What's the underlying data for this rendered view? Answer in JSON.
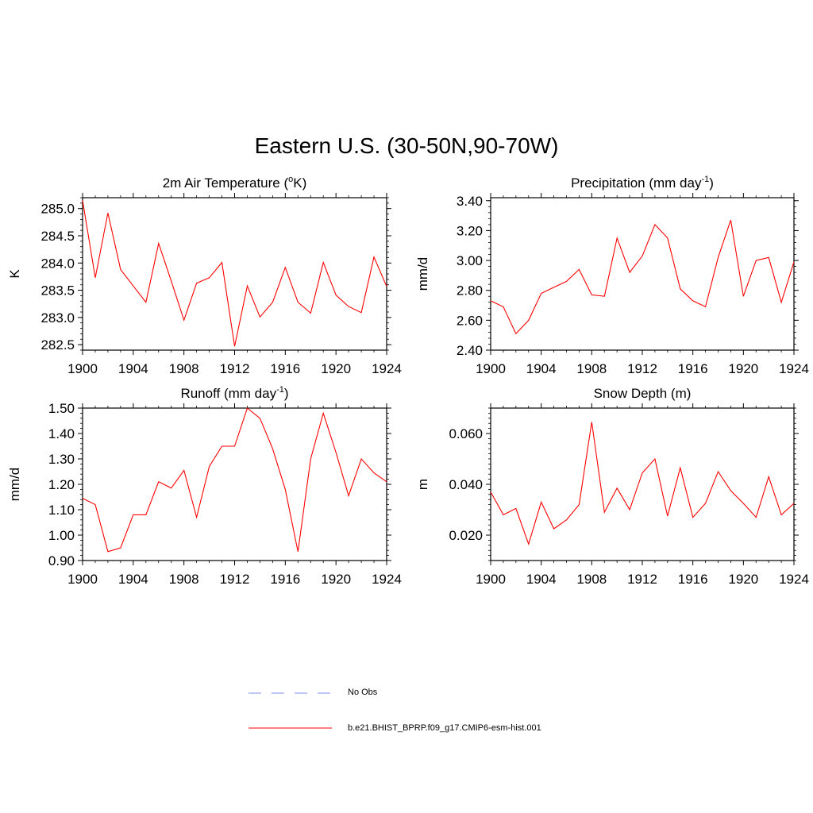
{
  "title": "Eastern U.S. (30-50N,90-70W)",
  "colors": {
    "model": "#ff0000",
    "obs": "#9aa3f0",
    "axis": "#000000"
  },
  "legend": {
    "obs_label": "No Obs",
    "model_label": "b.e21.BHIST_BPRP.f09_g17.CMIP6-esm-hist.001"
  },
  "chart_data": [
    {
      "id": "tas",
      "type": "line",
      "title": "2m Air Temperature (",
      "title_sup": "o",
      "title_tail": "K)",
      "ylabel": "K",
      "xlim": [
        1900,
        1924
      ],
      "ylim": [
        282.4,
        285.2
      ],
      "xticks": [
        1900,
        1904,
        1908,
        1912,
        1916,
        1920,
        1924
      ],
      "yticks": [
        "282.5",
        "283.0",
        "283.5",
        "284.0",
        "284.5",
        "285.0"
      ],
      "yminor": 0.1,
      "x": [
        1900,
        1901,
        1902,
        1903,
        1904,
        1905,
        1906,
        1907,
        1908,
        1909,
        1910,
        1911,
        1912,
        1913,
        1914,
        1915,
        1916,
        1917,
        1918,
        1919,
        1920,
        1921,
        1922,
        1923,
        1924
      ],
      "series": [
        {
          "name": "b.e21.BHIST_BPRP.f09_g17.CMIP6-esm-hist.001",
          "values": [
            285.15,
            283.73,
            284.92,
            283.88,
            283.58,
            283.28,
            284.36,
            283.67,
            282.95,
            283.63,
            283.73,
            284.01,
            282.47,
            283.58,
            283.01,
            283.28,
            283.92,
            283.28,
            283.08,
            284.01,
            283.41,
            283.2,
            283.09,
            284.11,
            283.57
          ]
        }
      ]
    },
    {
      "id": "precip",
      "type": "line",
      "title": "Precipitation (mm day",
      "title_sup": "-1",
      "title_tail": ")",
      "ylabel": "mm/d",
      "xlim": [
        1900,
        1924
      ],
      "ylim": [
        2.4,
        3.42
      ],
      "xticks": [
        1900,
        1904,
        1908,
        1912,
        1916,
        1920,
        1924
      ],
      "yticks": [
        "2.40",
        "2.60",
        "2.80",
        "3.00",
        "3.20",
        "3.40"
      ],
      "yminor": 0.04,
      "x": [
        1900,
        1901,
        1902,
        1903,
        1904,
        1905,
        1906,
        1907,
        1908,
        1909,
        1910,
        1911,
        1912,
        1913,
        1914,
        1915,
        1916,
        1917,
        1918,
        1919,
        1920,
        1921,
        1922,
        1923,
        1924
      ],
      "series": [
        {
          "name": "b.e21.BHIST_BPRP.f09_g17.CMIP6-esm-hist.001",
          "values": [
            2.73,
            2.69,
            2.51,
            2.6,
            2.78,
            2.82,
            2.86,
            2.94,
            2.77,
            2.76,
            3.15,
            2.92,
            3.03,
            3.24,
            3.15,
            2.81,
            2.73,
            2.69,
            3.02,
            3.27,
            2.76,
            3.0,
            3.02,
            2.72,
            2.99
          ]
        }
      ]
    },
    {
      "id": "runoff",
      "type": "line",
      "title": "Runoff (mm day",
      "title_sup": "-1",
      "title_tail": ")",
      "ylabel": "mm/d",
      "xlim": [
        1900,
        1924
      ],
      "ylim": [
        0.9,
        1.5
      ],
      "xticks": [
        1900,
        1904,
        1908,
        1912,
        1916,
        1920,
        1924
      ],
      "yticks": [
        "0.90",
        "1.00",
        "1.10",
        "1.20",
        "1.30",
        "1.40",
        "1.50"
      ],
      "yminor": 0.02,
      "x": [
        1900,
        1901,
        1902,
        1903,
        1904,
        1905,
        1906,
        1907,
        1908,
        1909,
        1910,
        1911,
        1912,
        1913,
        1914,
        1915,
        1916,
        1917,
        1918,
        1919,
        1920,
        1921,
        1922,
        1923,
        1924
      ],
      "series": [
        {
          "name": "b.e21.BHIST_BPRP.f09_g17.CMIP6-esm-hist.001",
          "values": [
            1.145,
            1.12,
            0.935,
            0.95,
            1.08,
            1.08,
            1.21,
            1.185,
            1.255,
            1.07,
            1.27,
            1.35,
            1.35,
            1.5,
            1.46,
            1.34,
            1.18,
            0.935,
            1.3,
            1.48,
            1.325,
            1.155,
            1.3,
            1.245,
            1.21
          ]
        }
      ]
    },
    {
      "id": "snow",
      "type": "line",
      "title": "Snow Depth (m)",
      "title_sup": "",
      "title_tail": "",
      "ylabel": "m",
      "xlim": [
        1900,
        1924
      ],
      "ylim": [
        0.01,
        0.07
      ],
      "xticks": [
        1900,
        1904,
        1908,
        1912,
        1916,
        1920,
        1924
      ],
      "yticks": [
        "0.020",
        "0.040",
        "0.060"
      ],
      "yminor": 0.002,
      "x": [
        1900,
        1901,
        1902,
        1903,
        1904,
        1905,
        1906,
        1907,
        1908,
        1909,
        1910,
        1911,
        1912,
        1913,
        1914,
        1915,
        1916,
        1917,
        1918,
        1919,
        1920,
        1921,
        1922,
        1923,
        1924
      ],
      "series": [
        {
          "name": "b.e21.BHIST_BPRP.f09_g17.CMIP6-esm-hist.001",
          "values": [
            0.037,
            0.028,
            0.0305,
            0.0165,
            0.033,
            0.0225,
            0.026,
            0.032,
            0.0645,
            0.029,
            0.0385,
            0.03,
            0.0445,
            0.05,
            0.0275,
            0.0465,
            0.027,
            0.0325,
            0.045,
            0.0375,
            0.0325,
            0.027,
            0.043,
            0.028,
            0.0325
          ]
        }
      ]
    }
  ]
}
